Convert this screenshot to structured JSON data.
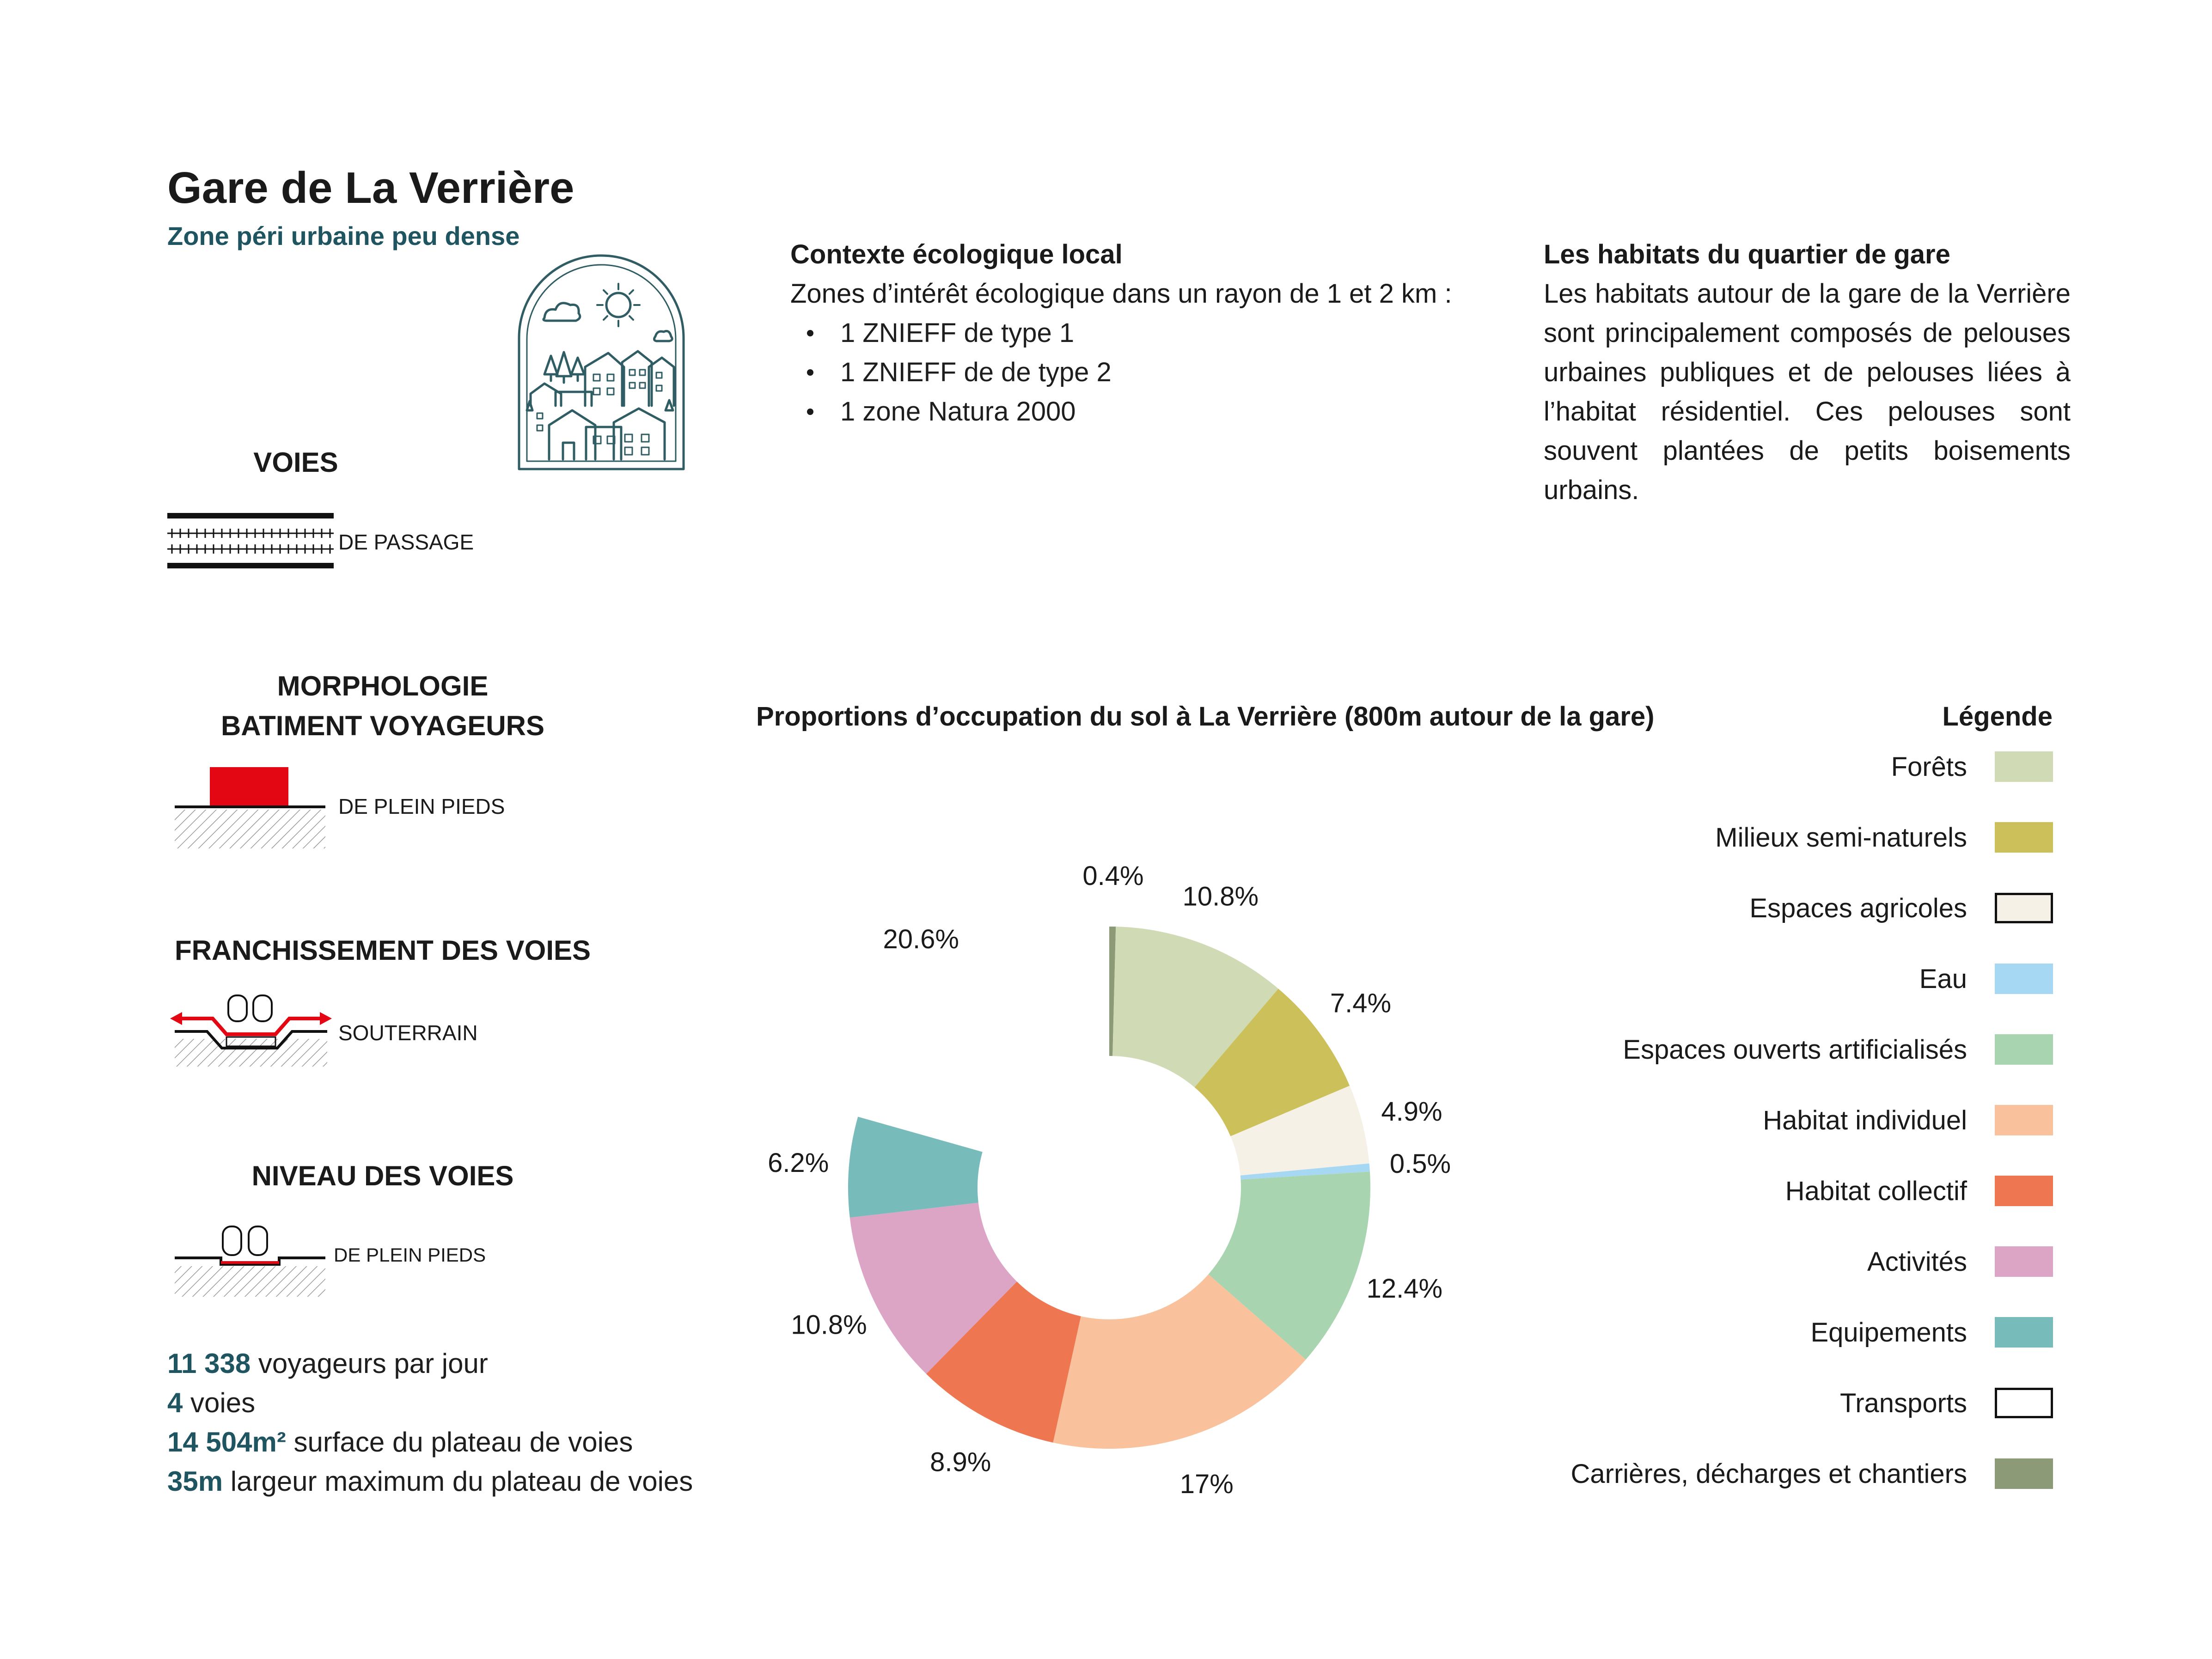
{
  "header": {
    "title": "Gare de La Verrière",
    "subtitle": "Zone péri urbaine peu dense"
  },
  "voies": {
    "heading": "VOIES",
    "label": "DE PASSAGE"
  },
  "morphologie": {
    "heading_line1": "MORPHOLOGIE",
    "heading_line2": "BATIMENT VOYAGEURS",
    "label": "DE PLEIN PIEDS",
    "building_color": "#e30613"
  },
  "franchissement": {
    "heading": "FRANCHISSEMENT DES VOIES",
    "label": "SOUTERRAIN",
    "arrow_color": "#e30613"
  },
  "niveau": {
    "heading": "NIVEAU DES VOIES",
    "label": "DE PLEIN PIEDS"
  },
  "stats": [
    {
      "value": "11 338",
      "text": " voyageurs par jour"
    },
    {
      "value": "4",
      "text": " voies"
    },
    {
      "value": "14 504m²",
      "text": " surface du plateau de voies"
    },
    {
      "value": "35m",
      "text": " largeur maximum du plateau de voies"
    }
  ],
  "contexte": {
    "heading": "Contexte écologique local",
    "intro": "Zones d’intérêt écologique dans un rayon de 1 et 2 km :",
    "items": [
      "1 ZNIEFF de type 1",
      "1 ZNIEFF de de type 2",
      "1 zone Natura 2000"
    ]
  },
  "habitats": {
    "heading": "Les habitats du quartier de gare",
    "text": "Les habitats autour de la gare de la Verrière sont principalement composés de pelouses urbaines publiques et de pelouses liées à l’habitat résidentiel. Ces pelouses sont souvent plantées de petits boisements urbains."
  },
  "icon": {
    "name": "city-nature-icon",
    "color": "#2f5d63"
  },
  "chart_data": {
    "type": "pie",
    "donut": true,
    "title": "Proportions d’occupation du sol à La Verrière (800m autour de la gare)",
    "legend_title": "Légende",
    "legend_position": "right",
    "slices": [
      {
        "name": "Carrières, décharges et chantiers",
        "value": 0.4,
        "label": "0.4%",
        "color": "#8d9a78"
      },
      {
        "name": "Forêts",
        "value": 10.8,
        "label": "10.8%",
        "color": "#d0dbb6"
      },
      {
        "name": "Milieux semi-naturels",
        "value": 7.4,
        "label": "7.4%",
        "color": "#ccc05a"
      },
      {
        "name": "Espaces agricoles",
        "value": 4.9,
        "label": "4.9%",
        "color": "#f5f1e6"
      },
      {
        "name": "Eau",
        "value": 0.5,
        "label": "0.5%",
        "color": "#a6d8f3"
      },
      {
        "name": "Espaces ouverts artificialisés",
        "value": 12.4,
        "label": "12.4%",
        "color": "#a8d5b0"
      },
      {
        "name": "Habitat individuel",
        "value": 17,
        "label": "17%",
        "color": "#f9c29c"
      },
      {
        "name": "Habitat collectif",
        "value": 8.9,
        "label": "8.9%",
        "color": "#ee7752"
      },
      {
        "name": "Activités",
        "value": 10.8,
        "label": "10.8%",
        "color": "#dca5c6"
      },
      {
        "name": "Equipements",
        "value": 6.2,
        "label": "6.2%",
        "color": "#77bbbb"
      },
      {
        "name": "Transports",
        "value": 20.6,
        "label": "20.6%",
        "color": "#ffffff"
      }
    ],
    "legend": [
      {
        "name": "Forêts",
        "color": "#d0dbb6",
        "outlined": false
      },
      {
        "name": "Milieux semi-naturels",
        "color": "#ccc05a",
        "outlined": false
      },
      {
        "name": "Espaces agricoles",
        "color": "#f5f1e6",
        "outlined": true
      },
      {
        "name": "Eau",
        "color": "#a6d8f3",
        "outlined": false
      },
      {
        "name": "Espaces ouverts artificialisés",
        "color": "#a8d5b0",
        "outlined": false
      },
      {
        "name": "Habitat individuel",
        "color": "#f9c29c",
        "outlined": false
      },
      {
        "name": "Habitat collectif",
        "color": "#ee7752",
        "outlined": false
      },
      {
        "name": "Activités",
        "color": "#dca5c6",
        "outlined": false
      },
      {
        "name": "Equipements",
        "color": "#77bbbb",
        "outlined": false
      },
      {
        "name": "Transports",
        "color": "#ffffff",
        "outlined": true
      },
      {
        "name": "Carrières, décharges et chantiers",
        "color": "#8d9a78",
        "outlined": false
      }
    ]
  }
}
